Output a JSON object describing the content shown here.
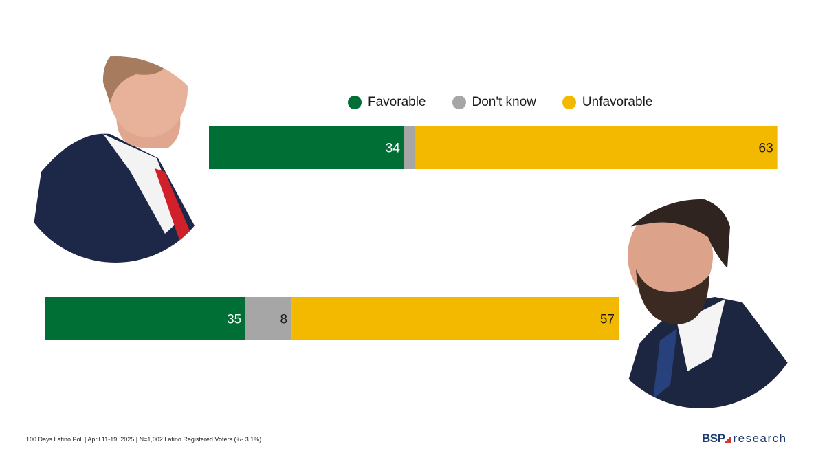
{
  "legend": {
    "items": [
      {
        "label": "Favorable",
        "color": "#006f35"
      },
      {
        "label": "Don't know",
        "color": "#a6a6a6"
      },
      {
        "label": "Unfavorable",
        "color": "#f3b800"
      }
    ]
  },
  "chart_data": {
    "type": "bar",
    "orientation": "horizontal-stacked",
    "categories": [
      "Trump",
      "Vance"
    ],
    "series": [
      {
        "name": "Favorable",
        "values": [
          34,
          35
        ],
        "color": "#006f35",
        "labels": [
          "34",
          "35"
        ]
      },
      {
        "name": "Don't know",
        "values": [
          2,
          8
        ],
        "color": "#a6a6a6",
        "labels": [
          "",
          "8"
        ]
      },
      {
        "name": "Unfavorable",
        "values": [
          63,
          57
        ],
        "color": "#f3b800",
        "labels": [
          "63",
          "57"
        ]
      }
    ],
    "xlim": [
      0,
      100
    ],
    "legend_position": "top-center"
  },
  "portraits": [
    {
      "name": "trump",
      "icon": "portrait-photo"
    },
    {
      "name": "vance",
      "icon": "portrait-photo"
    }
  ],
  "footer": {
    "source": "100 Days Latino Poll | April 11-19, 2025 | N=1,002 Latino Registered Voters (+/- 3.1%)"
  },
  "logo": {
    "brand": "BSP",
    "suffix": "research"
  }
}
